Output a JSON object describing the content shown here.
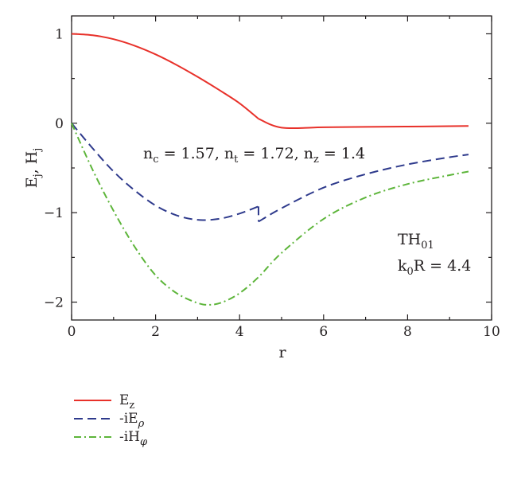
{
  "chart_data": {
    "type": "line",
    "title": "",
    "xlabel": "r",
    "ylabel": "E_j, H_j",
    "xlim": [
      0,
      10
    ],
    "ylim": [
      -2.2,
      1.2
    ],
    "x_ticks": [
      0,
      2,
      4,
      6,
      8,
      10
    ],
    "x_tick_labels": [
      "0",
      "2",
      "4",
      "6",
      "8",
      "10"
    ],
    "y_ticks": [
      1,
      0,
      -1,
      -2
    ],
    "y_tick_labels": [
      "1",
      "0",
      "−1",
      "−2"
    ],
    "grid": false,
    "legend_placement": "below",
    "series": [
      {
        "name": "E_z",
        "color": "#e8312a",
        "style": "solid",
        "x": [
          0,
          0.5,
          1,
          1.5,
          2,
          2.5,
          3,
          3.5,
          4,
          4.45,
          5,
          6,
          7,
          8,
          9,
          9.45
        ],
        "y": [
          1,
          0.984,
          0.94,
          0.867,
          0.77,
          0.652,
          0.519,
          0.376,
          0.223,
          0.05,
          -0.049,
          -0.045,
          -0.041,
          -0.037,
          -0.033,
          -0.03
        ]
      },
      {
        "name": "-iE_ρ",
        "color": "#2e3a8c",
        "style": "dashed",
        "x": [
          0,
          0.5,
          1,
          1.5,
          2,
          2.5,
          3,
          3.5,
          4,
          4.45,
          4.451,
          5,
          6,
          7,
          8,
          9,
          9.45
        ],
        "y": [
          0,
          -0.28,
          -0.54,
          -0.75,
          -0.92,
          -1.03,
          -1.08,
          -1.07,
          -1.01,
          -0.93,
          -1.1,
          -0.95,
          -0.72,
          -0.57,
          -0.46,
          -0.38,
          -0.35
        ]
      },
      {
        "name": "-iH_φ",
        "color": "#5db53a",
        "style": "dash-dot",
        "x": [
          0,
          0.5,
          1,
          1.5,
          2,
          2.5,
          3,
          3.3,
          3.6,
          4,
          4.45,
          5,
          6,
          7,
          8,
          9,
          9.45
        ],
        "y": [
          0,
          -0.52,
          -0.98,
          -1.38,
          -1.7,
          -1.9,
          -2.01,
          -2.03,
          -2.0,
          -1.9,
          -1.72,
          -1.45,
          -1.07,
          -0.83,
          -0.68,
          -0.58,
          -0.54
        ]
      }
    ],
    "annotations": {
      "indices": {
        "parts": [
          {
            "t": "n",
            "s": "c"
          },
          {
            "t": " = 1.57, n",
            "s": "t"
          },
          {
            "t": " = 1.72, n",
            "s": "z"
          },
          {
            "t": " = 1.4",
            "s": ""
          }
        ]
      },
      "mode_base": "TH",
      "mode_sub": "01",
      "k0r_base": "k",
      "k0r_sub": "0",
      "k0r_rest": "R = 4.4"
    }
  }
}
